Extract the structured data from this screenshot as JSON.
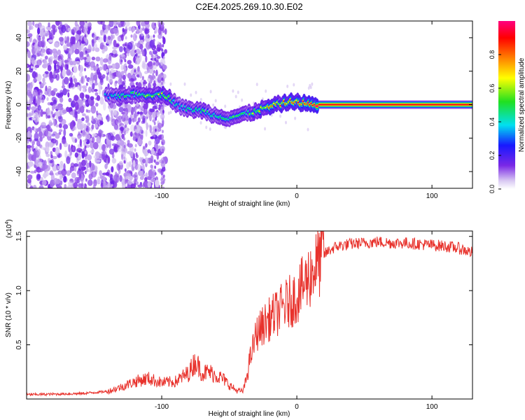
{
  "title": "C2E4.2025.269.10.30.E02",
  "chart_data": [
    {
      "type": "heatmap",
      "name": "spectrogram",
      "xlabel": "Height of straight line (km)",
      "ylabel": "Frequency (Hz)",
      "xlim": [
        -200,
        130
      ],
      "ylim": [
        -50,
        50
      ],
      "xticks": [
        -100,
        0,
        100
      ],
      "yticks": [
        -40,
        -20,
        0,
        20,
        40
      ],
      "colorbar": {
        "label": "Normalized spectral amplitude",
        "range": [
          0,
          1
        ],
        "ticks": [
          "0.0",
          "0.2",
          "0.4",
          "0.6",
          "0.8"
        ],
        "tick_values": [
          0,
          0.2,
          0.4,
          0.6,
          0.8
        ],
        "colormap": [
          "#ffffff",
          "#d8c8f2",
          "#7a28e6",
          "#1818ff",
          "#00e0f0",
          "#20e020",
          "#ffff00",
          "#ff8000",
          "#ff0000",
          "#ff0080"
        ]
      },
      "noise_region": [
        -200,
        -97
      ],
      "noise_lines": [
        -156,
        -127,
        -119,
        -105,
        -99
      ],
      "signal_track": [
        {
          "x": -141,
          "f": 5,
          "a": 0.35
        },
        {
          "x": -134,
          "f": 5,
          "a": 0.45
        },
        {
          "x": -125,
          "f": 6,
          "a": 0.45
        },
        {
          "x": -116,
          "f": 6,
          "a": 0.55
        },
        {
          "x": -109,
          "f": 6,
          "a": 0.5
        },
        {
          "x": -101,
          "f": 6,
          "a": 0.6
        },
        {
          "x": -95,
          "f": 5,
          "a": 0.5
        },
        {
          "x": -90,
          "f": 1,
          "a": 0.45
        },
        {
          "x": -86,
          "f": -1,
          "a": 0.4
        },
        {
          "x": -80,
          "f": -3,
          "a": 0.45
        },
        {
          "x": -74,
          "f": -3,
          "a": 0.4
        },
        {
          "x": -68,
          "f": -4,
          "a": 0.45
        },
        {
          "x": -62,
          "f": -6,
          "a": 0.4
        },
        {
          "x": -56,
          "f": -7,
          "a": 0.45
        },
        {
          "x": -50,
          "f": -8,
          "a": 0.4
        },
        {
          "x": -45,
          "f": -7,
          "a": 0.5
        },
        {
          "x": -40,
          "f": -6,
          "a": 0.45
        },
        {
          "x": -34,
          "f": -5,
          "a": 0.55
        },
        {
          "x": -28,
          "f": -3,
          "a": 0.6
        },
        {
          "x": -22,
          "f": -2,
          "a": 0.65
        },
        {
          "x": -15,
          "f": 0,
          "a": 0.7
        },
        {
          "x": -8,
          "f": 1,
          "a": 0.75
        },
        {
          "x": -2,
          "f": 2,
          "a": 0.8
        },
        {
          "x": 4,
          "f": 1,
          "a": 0.85
        },
        {
          "x": 10,
          "f": 0,
          "a": 0.9
        },
        {
          "x": 16,
          "f": 0,
          "a": 0.95
        }
      ],
      "steady_line": {
        "x_start": 16,
        "x_end": 130,
        "f": 0,
        "amplitude": 1.0
      }
    },
    {
      "type": "line",
      "name": "snr",
      "xlabel": "Height of straight line (km)",
      "ylabel": "SNR (10 * v/v)",
      "multiplier_label": "(x10",
      "multiplier_exp": "4",
      "multiplier_close": ")",
      "xlim": [
        -200,
        130
      ],
      "ylim": [
        0,
        15500
      ],
      "xticks": [
        -100,
        0,
        100
      ],
      "yticks": [
        5000,
        10000,
        15000
      ],
      "ytick_labels": [
        "0.5",
        "1.0",
        "1.5"
      ],
      "color": "#e8322c",
      "series": [
        {
          "name": "SNR",
          "x": [
            -200,
            -180,
            -160,
            -140,
            -130,
            -120,
            -110,
            -100,
            -90,
            -80,
            -75,
            -70,
            -65,
            -60,
            -55,
            -50,
            -45,
            -40,
            -38,
            -35,
            -32,
            -30,
            -25,
            -20,
            -15,
            -10,
            -5,
            0,
            5,
            10,
            15,
            20,
            25,
            30,
            40,
            50,
            60,
            70,
            80,
            90,
            100,
            110,
            120,
            130
          ],
          "y": [
            400,
            450,
            500,
            700,
            1100,
            1600,
            1900,
            1500,
            1600,
            2400,
            3500,
            2400,
            2500,
            2200,
            1900,
            1300,
            800,
            700,
            1500,
            3500,
            5000,
            6000,
            6800,
            7400,
            7900,
            8500,
            9000,
            9500,
            10500,
            11500,
            12500,
            13300,
            13800,
            14100,
            14300,
            14400,
            14500,
            14400,
            14400,
            14300,
            14200,
            14100,
            13900,
            13500
          ]
        }
      ]
    }
  ]
}
